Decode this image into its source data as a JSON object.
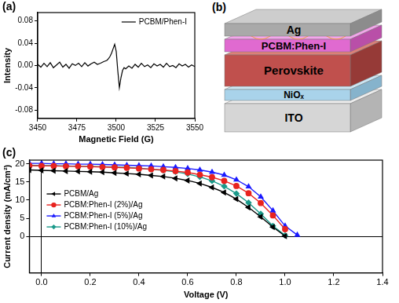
{
  "chart_data": [
    {
      "type": "line",
      "title": "(a)",
      "xlabel": "Magnetic Field (G)",
      "ylabel": "Intensity",
      "x": [
        3450,
        3452,
        3454,
        3456,
        3458,
        3460,
        3462,
        3464,
        3466,
        3468,
        3470,
        3472,
        3474,
        3476,
        3478,
        3480,
        3482,
        3484,
        3486,
        3488,
        3490,
        3492,
        3494,
        3495,
        3496,
        3497,
        3498,
        3499,
        3500,
        3501,
        3502,
        3503,
        3504,
        3505,
        3506,
        3508,
        3510,
        3512,
        3514,
        3516,
        3518,
        3520,
        3522,
        3524,
        3526,
        3528,
        3530,
        3532,
        3534,
        3536,
        3538,
        3540,
        3542,
        3544,
        3546,
        3548,
        3550
      ],
      "series": [
        {
          "name": "PCBM/Phen-I",
          "color": "#000000",
          "values": [
            0.002,
            -0.003,
            0.004,
            -0.002,
            0.005,
            -0.004,
            0.001,
            0.006,
            -0.003,
            0.002,
            -0.005,
            0.003,
            0.0,
            0.004,
            -0.002,
            0.005,
            -0.001,
            0.003,
            0.006,
            0.002,
            0.004,
            0.007,
            0.009,
            0.012,
            0.016,
            0.022,
            0.03,
            0.038,
            0.025,
            -0.01,
            -0.04,
            -0.022,
            -0.009,
            -0.004,
            -0.006,
            -0.001,
            -0.005,
            0.002,
            -0.003,
            0.004,
            -0.002,
            0.001,
            -0.004,
            0.003,
            -0.001,
            0.002,
            -0.003,
            0.004,
            -0.002,
            0.0,
            -0.004,
            0.003,
            -0.001,
            0.002,
            -0.003,
            0.001,
            -0.002
          ]
        }
      ],
      "xlim": [
        3450,
        3550
      ],
      "xticks": [
        3450,
        3475,
        3500,
        3525,
        3550
      ],
      "ylim": [
        -0.095,
        0.095
      ],
      "yticks": [
        -0.08,
        -0.04,
        {
          "value": 0,
          "label": "0.00"
        },
        0.04,
        0.08
      ],
      "grid": false,
      "legend": "top-right"
    },
    {
      "type": "line",
      "title": "(c)",
      "xlabel": "Voltage (V)",
      "ylabel": "Current density (mA/cm²)",
      "x": [
        -0.05,
        0,
        0.05,
        0.1,
        0.15,
        0.2,
        0.25,
        0.3,
        0.35,
        0.4,
        0.45,
        0.5,
        0.55,
        0.6,
        0.65,
        0.7,
        0.75,
        0.8,
        0.85,
        0.9,
        0.95,
        1.0,
        1.05
      ],
      "series": [
        {
          "name": "PCBM/Ag",
          "color": "#000000",
          "marker": "triangle-left",
          "values": [
            18.3,
            18.2,
            18.1,
            18.0,
            17.9,
            17.8,
            17.7,
            17.5,
            17.3,
            17.1,
            16.8,
            16.5,
            16.0,
            15.4,
            14.6,
            13.5,
            12.1,
            10.3,
            8.0,
            5.4,
            2.6,
            0.1,
            null
          ]
        },
        {
          "name": "PCBM:Phen-I (2%)/Ag",
          "color": "#e8231f",
          "marker": "circle",
          "values": [
            19.5,
            19.4,
            19.4,
            19.3,
            19.3,
            19.2,
            19.1,
            19.0,
            18.9,
            18.7,
            18.5,
            18.3,
            18.0,
            17.6,
            17.0,
            16.3,
            15.3,
            13.9,
            11.9,
            9.2,
            5.8,
            2.0,
            null
          ]
        },
        {
          "name": "PCBM:Phen-I (5%)/Ag",
          "color": "#1a1aff",
          "marker": "triangle",
          "values": [
            20.1,
            20.1,
            20.0,
            20.0,
            19.9,
            19.9,
            19.8,
            19.7,
            19.6,
            19.5,
            19.4,
            19.2,
            19.0,
            18.7,
            18.3,
            17.7,
            16.9,
            15.6,
            13.7,
            10.9,
            7.1,
            2.9,
            0.4
          ]
        },
        {
          "name": "PCBM:Phen-I (10%)/Ag",
          "color": "#1a9a8a",
          "marker": "diamond",
          "values": [
            19.6,
            19.5,
            19.5,
            19.4,
            19.3,
            19.3,
            19.2,
            19.1,
            19.0,
            18.8,
            18.5,
            18.2,
            17.8,
            17.2,
            16.4,
            15.3,
            13.8,
            11.8,
            9.3,
            6.2,
            2.9,
            0.3,
            null
          ]
        }
      ],
      "xlim": [
        -0.05,
        1.4
      ],
      "xticks": [
        {
          "value": 0,
          "label": "0.0"
        },
        0.2,
        0.4,
        0.6,
        0.8,
        {
          "value": 1,
          "label": "1.0"
        },
        1.2,
        1.4
      ],
      "ylim": [
        -10,
        21
      ],
      "yticks": [
        0,
        5,
        10,
        15,
        20
      ],
      "grid": false,
      "legend": "left"
    }
  ],
  "diagram": {
    "title": "(b)",
    "layers": [
      "Ag",
      "PCBM:Phen-I",
      "Perovskite",
      "NiOₓ",
      "ITO"
    ]
  }
}
